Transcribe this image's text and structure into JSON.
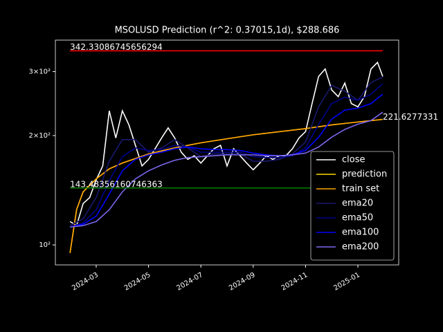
{
  "chart_data": {
    "type": "line",
    "title": "MSOLUSD Prediction (r^2: 0.37015,1d), $288.686",
    "log_y": true,
    "xlim": [
      0.44,
      13.56
    ],
    "xticks": [
      {
        "value": 2,
        "label": "2024-03"
      },
      {
        "value": 4,
        "label": "2024-05"
      },
      {
        "value": 6,
        "label": "2024-07"
      },
      {
        "value": 8,
        "label": "2024-09"
      },
      {
        "value": 10,
        "label": "2024-11"
      },
      {
        "value": 12,
        "label": "2025-01"
      }
    ],
    "ylim": [
      88.1,
      366.3
    ],
    "yticks": [
      {
        "value": 100,
        "label": "10²"
      },
      {
        "value": 200,
        "label": "2×10²"
      },
      {
        "value": 300,
        "label": "3×10²"
      }
    ],
    "legend": "lower right",
    "series": [
      {
        "name": "close",
        "color": "#ffffff",
        "x": [
          1.0,
          1.25,
          1.5,
          1.75,
          2.0,
          2.25,
          2.5,
          2.75,
          3.0,
          3.25,
          3.5,
          3.75,
          4.0,
          4.25,
          4.5,
          4.75,
          5.0,
          5.25,
          5.5,
          5.75,
          6.0,
          6.25,
          6.5,
          6.75,
          7.0,
          7.25,
          7.5,
          7.75,
          8.0,
          8.25,
          8.5,
          8.75,
          9.0,
          9.25,
          9.5,
          9.75,
          10.0,
          10.25,
          10.5,
          10.75,
          11.0,
          11.25,
          11.5,
          11.75,
          12.0,
          12.25,
          12.5,
          12.75,
          12.95
        ],
        "values": [
          116,
          113,
          130,
          135,
          151,
          165,
          234,
          197,
          234,
          214,
          188,
          165,
          172,
          184,
          197,
          210,
          197,
          180,
          172,
          176,
          168,
          176,
          184,
          188,
          165,
          184,
          176,
          168,
          161,
          168,
          176,
          172,
          176,
          176,
          184,
          197,
          205,
          245,
          291,
          305,
          267,
          256,
          279,
          245,
          240,
          256,
          305,
          318,
          291
        ]
      },
      {
        "name": "prediction",
        "color": "#ffd700",
        "x": [
          1.0,
          1.25,
          1.5,
          2.0,
          2.5,
          3.0,
          4.0,
          5.0,
          6.0,
          7.0,
          8.0,
          9.0,
          10.0,
          11.0,
          12.0,
          12.95
        ],
        "values": [
          95,
          125,
          140,
          152,
          162,
          168,
          178,
          185,
          191,
          196,
          201,
          205,
          209,
          214,
          218,
          221.6
        ]
      },
      {
        "name": "train set",
        "color": "#ffa500",
        "x": [
          1.0,
          1.25,
          1.5,
          2.0,
          2.5,
          3.0,
          4.0,
          5.0,
          6.0,
          7.0,
          8.0,
          9.0,
          10.0,
          11.0,
          12.0,
          12.95
        ],
        "values": [
          95,
          125,
          140,
          152,
          162,
          168,
          178,
          185,
          191,
          196,
          201,
          205,
          209,
          214,
          218,
          221.6277331
        ]
      },
      {
        "name": "ema20",
        "color": "#191970",
        "x": [
          1.0,
          1.5,
          2.0,
          2.5,
          3.0,
          3.5,
          4.0,
          4.5,
          5.0,
          5.5,
          6.0,
          6.5,
          7.0,
          7.5,
          8.0,
          8.5,
          9.0,
          9.5,
          10.0,
          10.5,
          11.0,
          11.5,
          12.0,
          12.5,
          12.95
        ],
        "values": [
          113,
          118,
          135,
          170,
          195,
          195,
          180,
          185,
          195,
          185,
          175,
          178,
          178,
          178,
          170,
          170,
          172,
          178,
          192,
          240,
          275,
          265,
          250,
          280,
          290
        ]
      },
      {
        "name": "ema50",
        "color": "#00008b",
        "x": [
          1.0,
          1.5,
          2.0,
          2.5,
          3.0,
          3.5,
          4.0,
          4.5,
          5.0,
          5.5,
          6.0,
          6.5,
          7.0,
          7.5,
          8.0,
          8.5,
          9.0,
          9.5,
          10.0,
          10.5,
          11.0,
          11.5,
          12.0,
          12.5,
          12.95
        ],
        "values": [
          112,
          115,
          125,
          150,
          175,
          185,
          182,
          183,
          188,
          186,
          180,
          180,
          180,
          180,
          175,
          174,
          174,
          176,
          185,
          215,
          245,
          255,
          250,
          260,
          278
        ]
      },
      {
        "name": "ema100",
        "color": "#0000ff",
        "x": [
          1.0,
          1.5,
          2.0,
          2.5,
          3.0,
          3.5,
          4.0,
          4.5,
          5.0,
          5.5,
          6.0,
          6.5,
          7.0,
          7.5,
          8.0,
          8.5,
          9.0,
          9.5,
          10.0,
          10.5,
          11.0,
          11.5,
          12.0,
          12.5,
          12.95
        ],
        "values": [
          112,
          114,
          120,
          138,
          160,
          172,
          177,
          180,
          184,
          186,
          184,
          183,
          183,
          182,
          179,
          177,
          176,
          177,
          182,
          198,
          222,
          235,
          238,
          245,
          260
        ]
      },
      {
        "name": "ema200",
        "color": "#7b68ee",
        "x": [
          1.0,
          1.5,
          2.0,
          2.5,
          3.0,
          3.5,
          4.0,
          4.5,
          5.0,
          5.5,
          6.0,
          6.5,
          7.0,
          7.5,
          8.0,
          8.5,
          9.0,
          9.5,
          10.0,
          10.5,
          11.0,
          11.5,
          12.0,
          12.5,
          12.95
        ],
        "values": [
          112,
          113,
          116,
          125,
          140,
          152,
          160,
          166,
          171,
          174,
          175,
          176,
          177,
          177,
          177,
          176,
          176,
          177,
          179,
          186,
          198,
          208,
          215,
          220,
          232
        ]
      }
    ],
    "hlines": [
      {
        "value": 342.33086745656294,
        "color": "#ff0000",
        "x": [
          1.0,
          12.95
        ]
      },
      {
        "value": 143.48356160746363,
        "color": "#008000",
        "x": [
          1.0,
          12.95
        ]
      }
    ]
  }
}
